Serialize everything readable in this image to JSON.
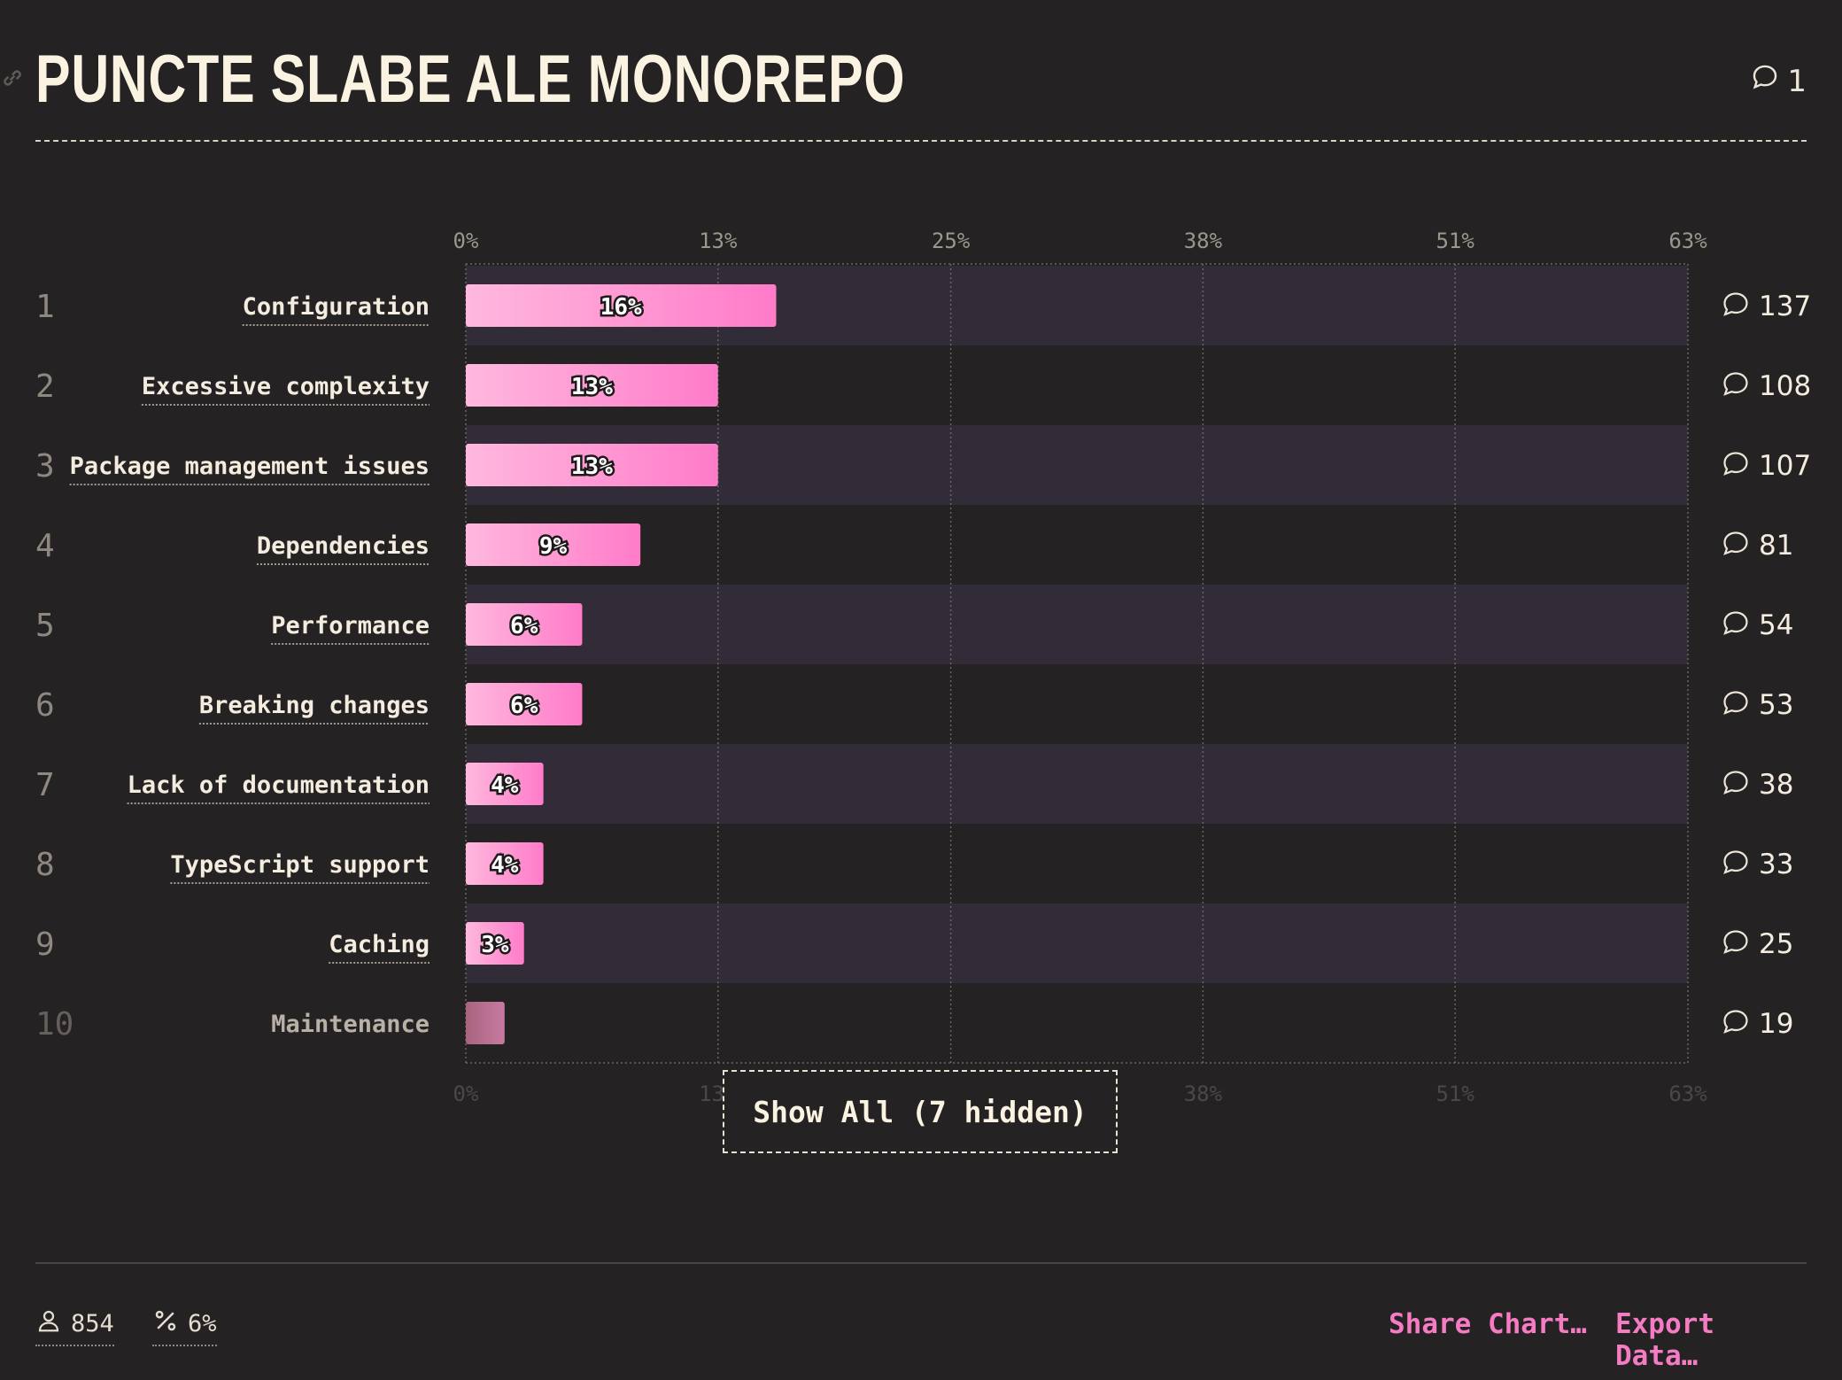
{
  "header": {
    "title": "PUNCTE SLABE ALE MONOREPO",
    "comment_count": "1"
  },
  "colors": {
    "bar_start": "#ffb8de",
    "bar_end": "#ff7bc9",
    "accent": "#f57bc3",
    "stripe": "#322c38"
  },
  "chart_data": {
    "type": "bar",
    "orientation": "horizontal",
    "categories": [
      "Configuration",
      "Excessive complexity",
      "Package management issues",
      "Dependencies",
      "Performance",
      "Breaking changes",
      "Lack of documentation",
      "TypeScript support",
      "Caching",
      "Maintenance"
    ],
    "values": [
      16,
      13,
      13,
      9,
      6,
      6,
      4,
      4,
      3,
      2
    ],
    "value_labels": [
      "16%",
      "13%",
      "13%",
      "9%",
      "6%",
      "6%",
      "4%",
      "4%",
      "3%",
      ""
    ],
    "ranks": [
      "1",
      "2",
      "3",
      "4",
      "5",
      "6",
      "7",
      "8",
      "9",
      "10"
    ],
    "comments": [
      "137",
      "108",
      "107",
      "81",
      "54",
      "53",
      "38",
      "33",
      "25",
      "19"
    ],
    "axis_ticks": [
      "0%",
      "13%",
      "25%",
      "38%",
      "51%",
      "63%"
    ],
    "xlim": [
      0,
      63
    ],
    "grid": true
  },
  "show_all_label": "Show All (7 hidden)",
  "footer": {
    "respondents": "854",
    "percent": "6%",
    "share_label": "Share Chart…",
    "export_label": "Export Data…"
  }
}
